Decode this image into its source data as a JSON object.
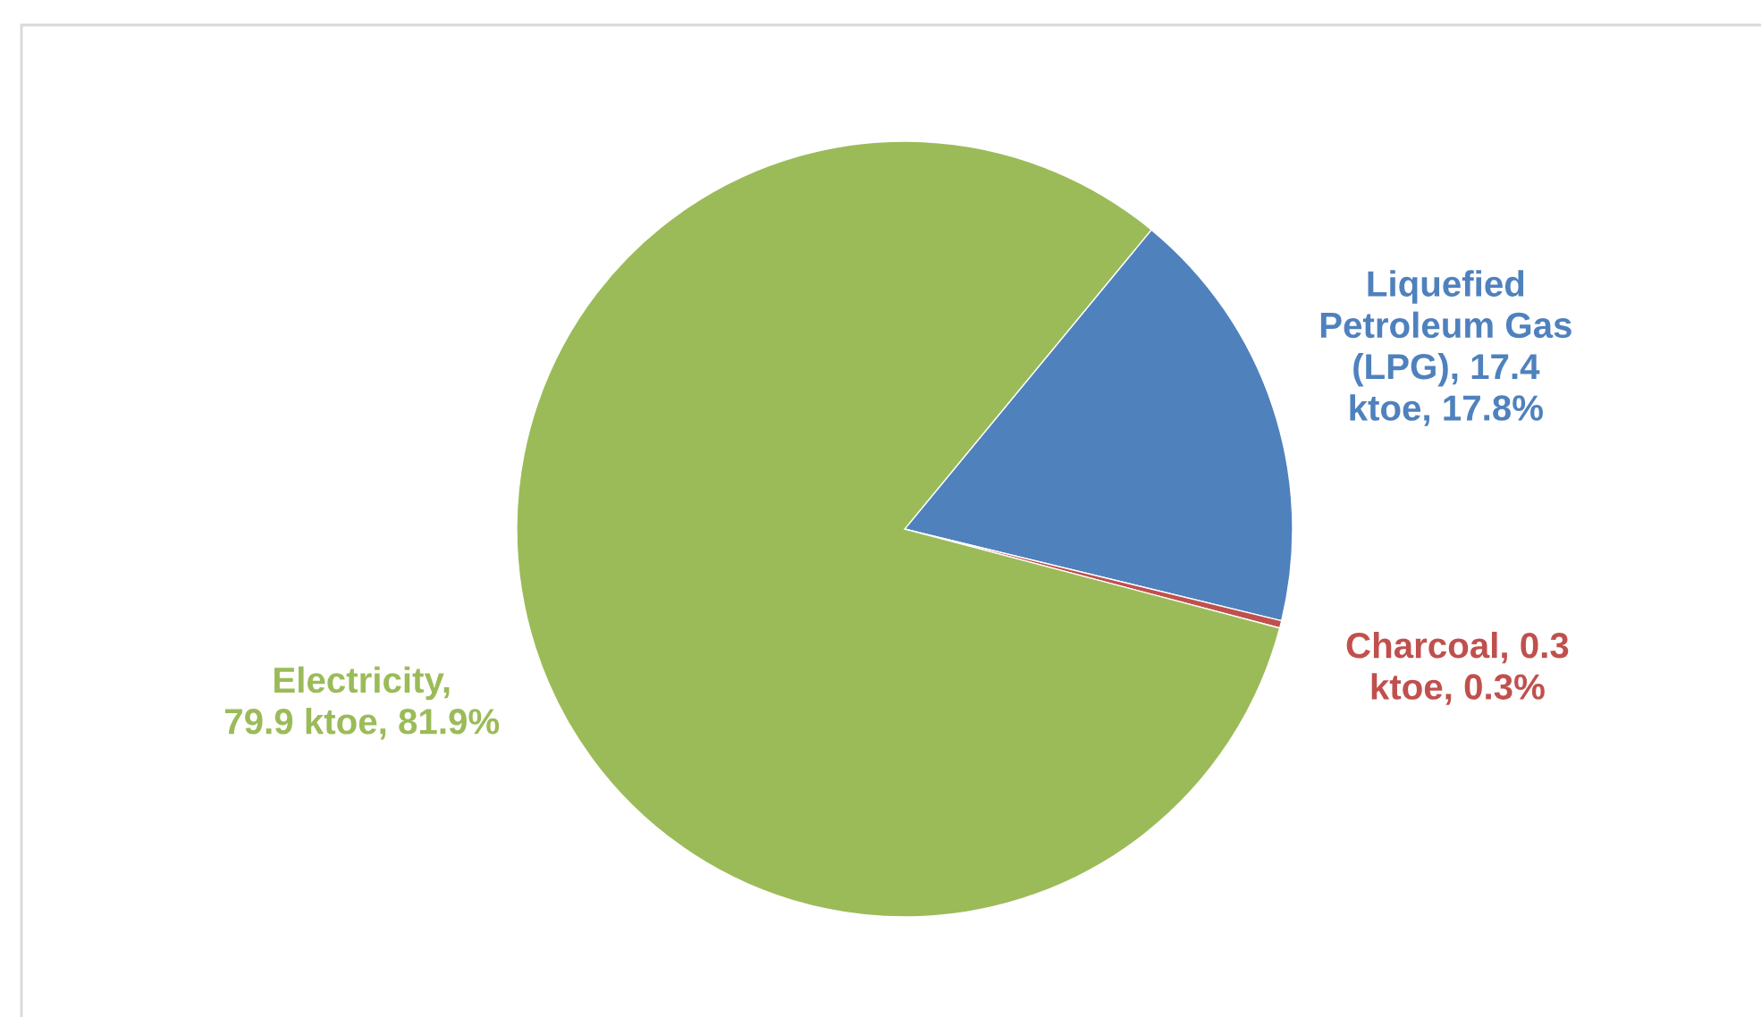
{
  "chart_data": {
    "type": "pie",
    "categories": [
      "Liquefied Petroleum Gas (LPG), 17.4 ktoe, 17.8%",
      "Charcoal, 0.3 ktoe, 0.3%",
      "Electricity, 79.9 ktoe, 81.9%"
    ],
    "values": [
      17.4,
      0.3,
      79.9
    ],
    "colors": [
      "#4f81bd",
      "#c0504d",
      "#9bbb59"
    ],
    "legend": false
  }
}
